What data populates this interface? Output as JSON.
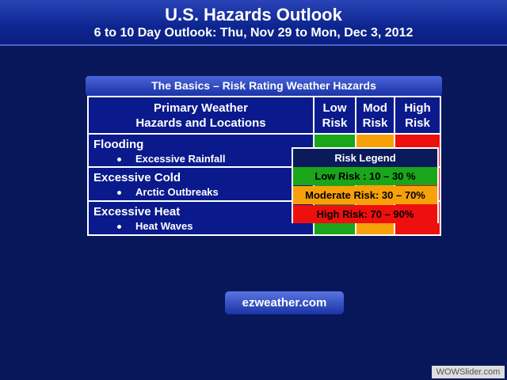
{
  "header": {
    "title": "U.S. Hazards Outlook",
    "subtitle": "6 to 10 Day Outlook: Thu, Nov 29 to Mon, Dec 3, 2012"
  },
  "panel": {
    "title": "The Basics – Risk Rating Weather Hazards"
  },
  "table": {
    "header": [
      [
        "Primary Weather",
        "Hazards and Locations"
      ],
      [
        "Low",
        "Risk"
      ],
      [
        "Mod",
        "Risk"
      ],
      [
        "High",
        "Risk"
      ]
    ],
    "rows": [
      {
        "hazard": "Flooding",
        "location": "Excessive Rainfall"
      },
      {
        "hazard": "Excessive Cold",
        "location": "Arctic Outbreaks"
      },
      {
        "hazard": "Excessive Heat",
        "location": "Heat Waves"
      }
    ]
  },
  "legend": {
    "title": "Risk Legend",
    "items": [
      "Low Risk : 10 – 30 %",
      "Moderate Risk: 30 – 70%",
      "High Risk: 70 – 90%"
    ]
  },
  "button": {
    "label": "ezweather.com"
  },
  "watermark": "WOWSlider.com"
}
